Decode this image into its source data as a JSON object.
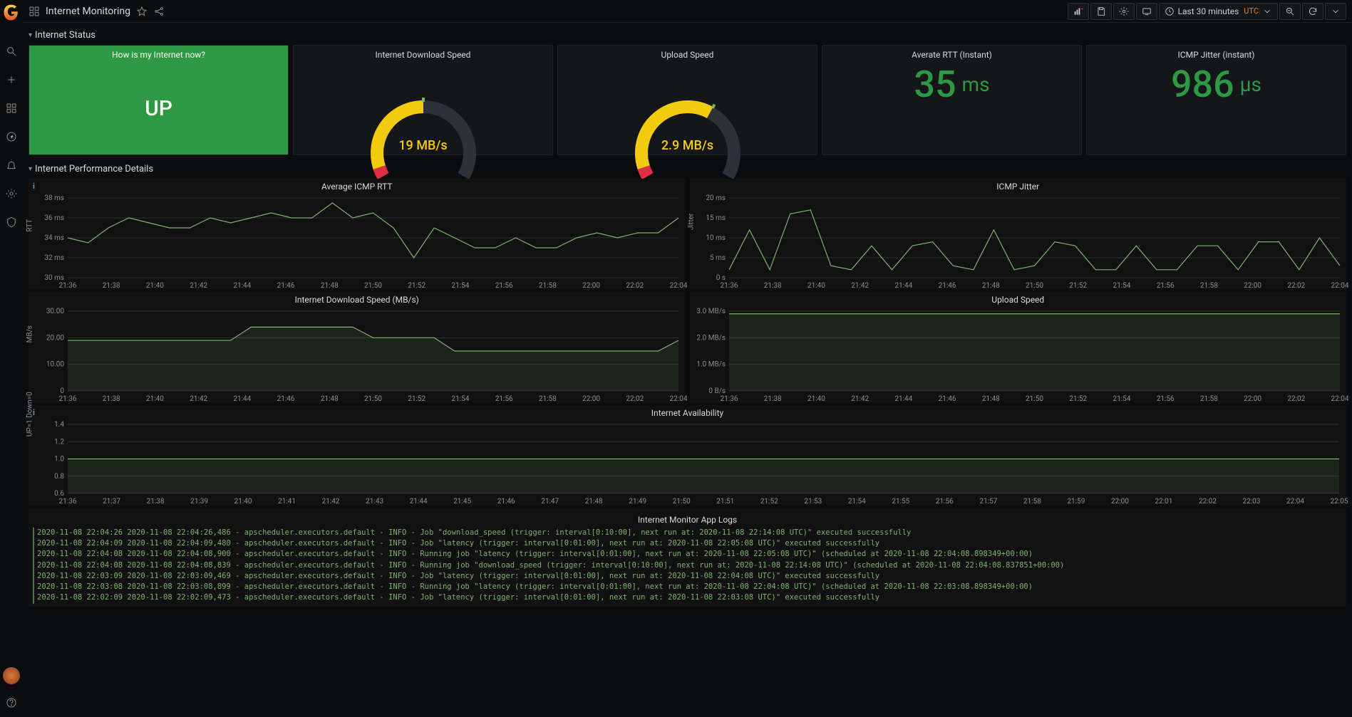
{
  "header": {
    "title": "Internet Monitoring",
    "time_range": "Last 30 minutes",
    "tz": "UTC"
  },
  "sections": {
    "status": "Internet Status",
    "perf": "Internet Performance Details"
  },
  "status_panels": {
    "up": {
      "title": "How is my Internet now?",
      "value": "UP",
      "bg": "#2e9943"
    },
    "download_gauge": {
      "title": "Internet Download Speed",
      "value": "19 MB/s",
      "type": "gauge",
      "fraction": 0.5,
      "track_color": "#2c3235",
      "segments": [
        {
          "start": 0,
          "end": 0.05,
          "color": "#e02f44"
        },
        {
          "start": 0.05,
          "end": 0.5,
          "color": "#f2cc0c"
        }
      ],
      "knob_color": "#7eb26d",
      "value_color": "#f2cc0c"
    },
    "upload_gauge": {
      "title": "Upload Speed",
      "value": "2.9 MB/s",
      "type": "gauge",
      "fraction": 0.62,
      "track_color": "#2c3235",
      "segments": [
        {
          "start": 0,
          "end": 0.05,
          "color": "#e02f44"
        },
        {
          "start": 0.05,
          "end": 0.62,
          "color": "#f2cc0c"
        }
      ],
      "knob_color": "#7eb26d",
      "value_color": "#f2cc0c"
    },
    "rtt_stat": {
      "title": "Averate RTT (Instant)",
      "value": "35",
      "unit": "ms",
      "color": "#2e9943"
    },
    "jitter_stat": {
      "title": "ICMP Jitter (instant)",
      "value": "986",
      "unit": "µs",
      "color": "#2e9943"
    }
  },
  "charts": {
    "rtt": {
      "title": "Average ICMP RTT",
      "ylabel": "RTT",
      "info": true,
      "yticks": [
        "30 ms",
        "32 ms",
        "34 ms",
        "36 ms",
        "38 ms"
      ],
      "ylim": [
        30,
        38
      ],
      "xticks": [
        "21:36",
        "21:38",
        "21:40",
        "21:42",
        "21:44",
        "21:46",
        "21:48",
        "21:50",
        "21:52",
        "21:54",
        "21:56",
        "21:58",
        "22:00",
        "22:02",
        "22:04"
      ],
      "line_color": "#7eb26d",
      "grid_color": "#2c3235",
      "series": [
        34,
        33.5,
        35,
        36,
        35.5,
        35,
        35,
        36,
        35.5,
        36,
        36.5,
        36,
        36,
        37.5,
        36,
        36.5,
        35,
        32,
        35,
        34,
        33,
        33,
        34,
        33,
        33,
        34,
        34.5,
        34,
        34.5,
        34.5,
        36
      ]
    },
    "jitter": {
      "title": "ICMP Jitter",
      "ylabel": "Jitter",
      "yticks": [
        "0 s",
        "5 ms",
        "10 ms",
        "15 ms",
        "20 ms"
      ],
      "ylim": [
        0,
        20
      ],
      "xticks": [
        "21:36",
        "21:38",
        "21:40",
        "21:42",
        "21:44",
        "21:46",
        "21:48",
        "21:50",
        "21:52",
        "21:54",
        "21:56",
        "21:58",
        "22:00",
        "22:02",
        "22:04"
      ],
      "line_color": "#7eb26d",
      "grid_color": "#2c3235",
      "series": [
        2,
        12,
        2,
        16,
        17,
        3,
        2,
        8,
        2,
        8,
        9,
        3,
        2,
        12,
        2,
        3,
        9,
        8,
        2,
        2,
        8,
        2,
        2,
        8,
        8,
        2,
        9,
        9,
        2,
        10,
        3
      ]
    },
    "dl_speed": {
      "title": "Internet Download Speed (MB/s)",
      "ylabel": "MB/s",
      "yticks": [
        "0",
        "10.00",
        "20.00",
        "30.00"
      ],
      "ylim": [
        0,
        30
      ],
      "xticks": [
        "21:36",
        "21:38",
        "21:40",
        "21:42",
        "21:44",
        "21:46",
        "21:48",
        "21:50",
        "21:52",
        "21:54",
        "21:56",
        "21:58",
        "22:00",
        "22:02",
        "22:04"
      ],
      "line_color": "#7eb26d",
      "grid_color": "#2c3235",
      "series": [
        19,
        19,
        19,
        19,
        19,
        19,
        19,
        19,
        19,
        24,
        24,
        24,
        24,
        24,
        24,
        20,
        20,
        20,
        20,
        15,
        15,
        15,
        15,
        15,
        15,
        15,
        15,
        15,
        15,
        15,
        19
      ],
      "fill": true
    },
    "ul_speed": {
      "title": "Upload Speed",
      "ylabel": "",
      "yticks": [
        "0 B/s",
        "1.0 MB/s",
        "2.0 MB/s",
        "3.0 MB/s"
      ],
      "ylim": [
        0,
        3
      ],
      "xticks": [
        "21:36",
        "21:38",
        "21:40",
        "21:42",
        "21:44",
        "21:46",
        "21:48",
        "21:50",
        "21:52",
        "21:54",
        "21:56",
        "21:58",
        "22:00",
        "22:02",
        "22:04"
      ],
      "line_color": "#7eb26d",
      "grid_color": "#2c3235",
      "series": [
        2.9,
        2.9,
        2.9,
        2.9,
        2.9,
        2.9,
        2.9,
        2.9,
        2.9,
        2.9,
        2.9,
        2.9,
        2.9,
        2.9,
        2.9,
        2.9,
        2.9,
        2.9,
        2.9,
        2.9,
        2.9,
        2.9,
        2.9,
        2.9,
        2.9,
        2.9,
        2.9,
        2.9,
        2.9,
        2.9,
        2.9
      ],
      "fill": true
    },
    "availability": {
      "title": "Internet Availability",
      "ylabel": "UP=1 Down=0",
      "info": true,
      "yticks": [
        "0.6",
        "0.8",
        "1.0",
        "1.2",
        "1.4"
      ],
      "ylim": [
        0.6,
        1.4
      ],
      "xticks": [
        "21:36",
        "21:37",
        "21:38",
        "21:39",
        "21:40",
        "21:41",
        "21:42",
        "21:43",
        "21:44",
        "21:45",
        "21:46",
        "21:47",
        "21:48",
        "21:49",
        "21:50",
        "21:51",
        "21:52",
        "21:53",
        "21:54",
        "21:55",
        "21:56",
        "21:57",
        "21:58",
        "21:59",
        "22:00",
        "22:01",
        "22:02",
        "22:03",
        "22:04",
        "22:05"
      ],
      "line_color": "#7eb26d",
      "grid_color": "#2c3235",
      "series": [
        1,
        1,
        1,
        1,
        1,
        1,
        1,
        1,
        1,
        1,
        1,
        1,
        1,
        1,
        1,
        1,
        1,
        1,
        1,
        1,
        1,
        1,
        1,
        1,
        1,
        1,
        1,
        1,
        1,
        1
      ],
      "fill": true
    }
  },
  "logs": {
    "title": "Internet Monitor App Logs",
    "lines": [
      "2020-11-08 22:04:26  2020-11-08 22:04:26,486 - apscheduler.executors.default - INFO - Job \"download_speed (trigger: interval[0:10:00], next run at: 2020-11-08 22:14:08 UTC)\" executed successfully",
      "2020-11-08 22:04:09  2020-11-08 22:04:09,480 - apscheduler.executors.default - INFO - Job \"latency (trigger: interval[0:01:00], next run at: 2020-11-08 22:05:08 UTC)\" executed successfully",
      "2020-11-08 22:04:08  2020-11-08 22:04:08,900 - apscheduler.executors.default - INFO - Running job \"latency (trigger: interval[0:01:00], next run at: 2020-11-08 22:05:08 UTC)\" (scheduled at 2020-11-08 22:04:08.898349+00:00)",
      "2020-11-08 22:04:08  2020-11-08 22:04:08,839 - apscheduler.executors.default - INFO - Running job \"download_speed (trigger: interval[0:10:00], next run at: 2020-11-08 22:14:08 UTC)\" (scheduled at 2020-11-08 22:04:08.837851+00:00)",
      "2020-11-08 22:03:09  2020-11-08 22:03:09,469 - apscheduler.executors.default - INFO - Job \"latency (trigger: interval[0:01:00], next run at: 2020-11-08 22:04:08 UTC)\" executed successfully",
      "2020-11-08 22:03:08  2020-11-08 22:03:08,899 - apscheduler.executors.default - INFO - Running job \"latency (trigger: interval[0:01:00], next run at: 2020-11-08 22:04:08 UTC)\" (scheduled at 2020-11-08 22:03:08.898349+00:00)",
      "2020-11-08 22:02:09  2020-11-08 22:02:09,473 - apscheduler.executors.default - INFO - Job \"latency (trigger: interval[0:01:00], next run at: 2020-11-08 22:03:08 UTC)\" executed successfully"
    ]
  }
}
